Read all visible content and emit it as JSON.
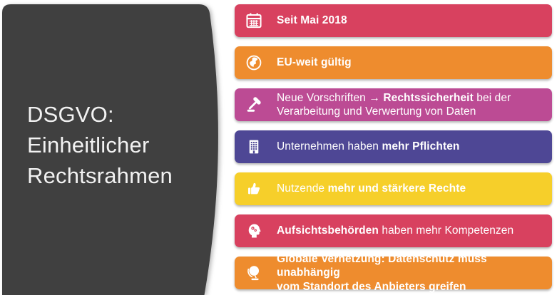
{
  "slide": {
    "title": "DSGVO: Einheitlicher Rechtsrahmen",
    "panel_color": "#404040",
    "title_color": "#F2F2F2",
    "text_color": "#FFFFFF"
  },
  "colors": {
    "red": "#D8415F",
    "orange": "#EE8C2E",
    "magenta": "#BC4B94",
    "purple": "#4E4795",
    "yellow": "#F6CF2A"
  },
  "bars": [
    {
      "name": "seit-mai-2018",
      "color": "#D8415F",
      "icon": "calendar",
      "lines": [
        [
          {
            "t": "Seit Mai 2018",
            "b": true
          }
        ]
      ]
    },
    {
      "name": "eu-weit-gueltig",
      "color": "#EE8C2E",
      "icon": "globe-earth",
      "lines": [
        [
          {
            "t": "EU-weit gültig",
            "b": true
          }
        ]
      ]
    },
    {
      "name": "neue-vorschriften-rechtssicherheit",
      "color": "#BC4B94",
      "icon": "gavel",
      "lines": [
        [
          {
            "t": "Neue Vorschriften ",
            "b": false
          },
          {
            "t": "→ ",
            "b": true
          },
          {
            "t": "Rechtssicherheit",
            "b": true
          },
          {
            "t": " bei der",
            "b": false
          }
        ],
        [
          {
            "t": "Verarbeitung und Verwertung von Daten",
            "b": false
          }
        ]
      ]
    },
    {
      "name": "unternehmen-mehr-pflichten",
      "color": "#4E4795",
      "icon": "building",
      "lines": [
        [
          {
            "t": "Unternehmen haben ",
            "b": false
          },
          {
            "t": "mehr Pflichten",
            "b": true
          }
        ]
      ]
    },
    {
      "name": "nutzende-staerkere-rechte",
      "color": "#F6CF2A",
      "icon": "thumbs-up",
      "lines": [
        [
          {
            "t": "Nutzende ",
            "b": false
          },
          {
            "t": "mehr und stärkere Rechte",
            "b": true
          }
        ]
      ]
    },
    {
      "name": "aufsichtsbehoerden-kompetenzen",
      "color": "#D8415F",
      "icon": "head-gears",
      "lines": [
        [
          {
            "t": "Aufsichtsbehörden",
            "b": true
          },
          {
            "t": " haben mehr Kompetenzen",
            "b": false
          }
        ]
      ]
    },
    {
      "name": "globale-vernetzung",
      "color": "#EE8C2E",
      "icon": "desk-globe",
      "lines": [
        [
          {
            "t": "Globale Vernetzung: Datenschutz muss unabhängig",
            "b": true
          }
        ],
        [
          {
            "t": "vom Standort des Anbieters greifen",
            "b": true
          }
        ]
      ]
    }
  ]
}
